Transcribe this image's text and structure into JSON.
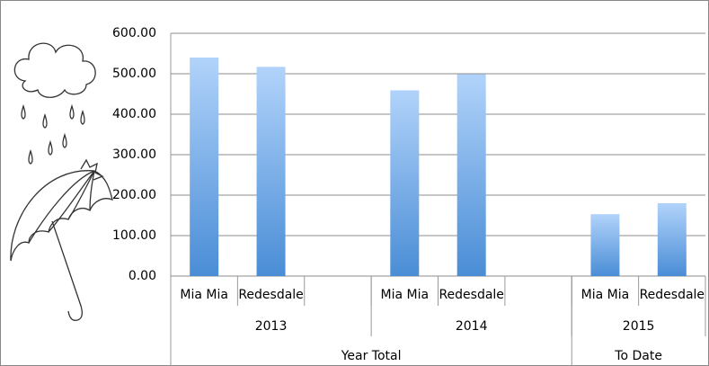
{
  "chart_data": {
    "type": "bar",
    "groups": [
      {
        "label": "Year Total",
        "years": [
          {
            "label": "2013",
            "categories": [
              "Mia Mia",
              "Redesdale",
              null
            ],
            "values": [
              540,
              517,
              null
            ]
          },
          {
            "label": "2014",
            "categories": [
              "Mia Mia",
              "Redesdale",
              null
            ],
            "values": [
              459,
              499,
              null
            ]
          }
        ]
      },
      {
        "label": "To Date",
        "years": [
          {
            "label": "2015",
            "categories": [
              "Mia Mia",
              "Redesdale"
            ],
            "values": [
              153,
              180
            ]
          }
        ]
      }
    ],
    "ylim": [
      0,
      600
    ],
    "yticks": [
      {
        "value": 0,
        "label": "0.00"
      },
      {
        "value": 100,
        "label": "100.00"
      },
      {
        "value": 200,
        "label": "200.00"
      },
      {
        "value": 300,
        "label": "300.00"
      },
      {
        "value": 400,
        "label": "400.00"
      },
      {
        "value": 500,
        "label": "500.00"
      },
      {
        "value": 600,
        "label": "600.00"
      }
    ],
    "grid": true,
    "color": "#5b9bd5"
  }
}
